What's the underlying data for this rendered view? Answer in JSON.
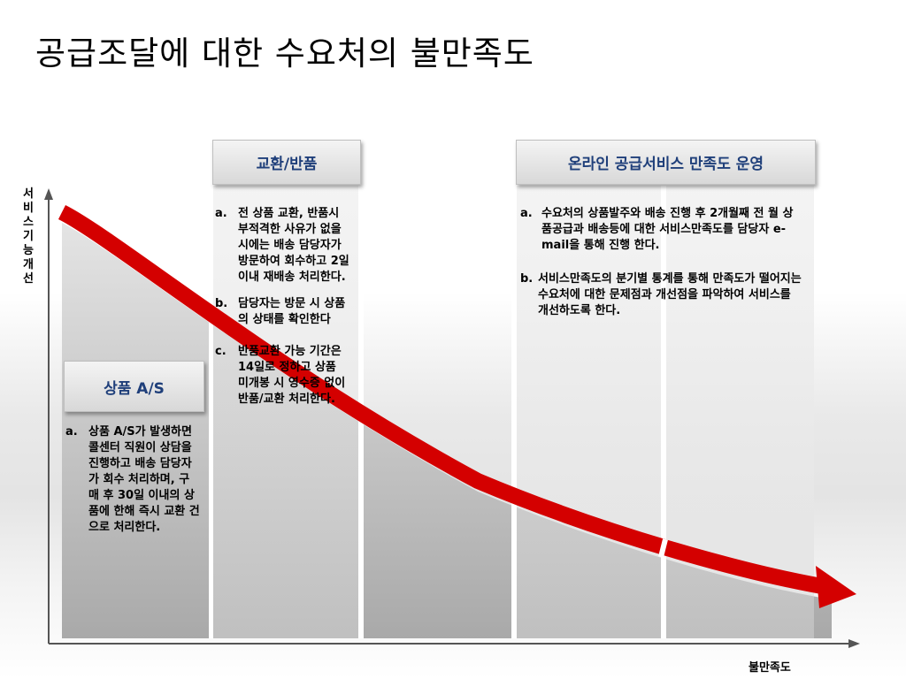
{
  "title": "공급조달에 대한 수요처의 불만족도",
  "axes": {
    "y_label": "서비스기능 개선",
    "x_label": "불만족도"
  },
  "colors": {
    "curve": "#d40000",
    "header_text": "#1f3f7a"
  },
  "sections": [
    {
      "header": "상품 A/S",
      "items": [
        {
          "marker": "a.",
          "text": "상품 A/S가 발생하면 콜센터 직원이 상담을 진행하고 배송 담당자가 회수 처리하며, 구매 후 30일 이내의 상품에 한해 즉시 교환 건으로 처리한다."
        }
      ]
    },
    {
      "header": "교환/반품",
      "items": [
        {
          "marker": "a.",
          "text": "전 상품 교환, 반품시 부적격한 사유가 없을 시에는 배송 담당자가 방문하여 회수하고 2일 이내 재배송 처리한다."
        },
        {
          "marker": "b.",
          "text": "담당자는 방문 시 상품의 상태를 확인한다"
        },
        {
          "marker": "c.",
          "text": "반품교환 가능 기간은 14일로 정하고 상품 미개봉 시 영수증 없이 반품/교환 처리한다."
        }
      ]
    },
    {
      "header": "온라인 공급서비스 만족도 운영",
      "items": [
        {
          "marker": "a.",
          "text": "수요처의 상품발주와 배송 진행 후 2개월째 전 월 상품공급과 배송등에 대한 서비스만족도를 담당자 e-mail을 통해 진행 한다."
        },
        {
          "marker": "b.",
          "text": "서비스만족도의 분기별 통계를 통해 만족도가 떨어지는 수요처에 대한 문제점과 개선점을 파악하여 서비스를 개선하도록 한다."
        }
      ]
    }
  ]
}
